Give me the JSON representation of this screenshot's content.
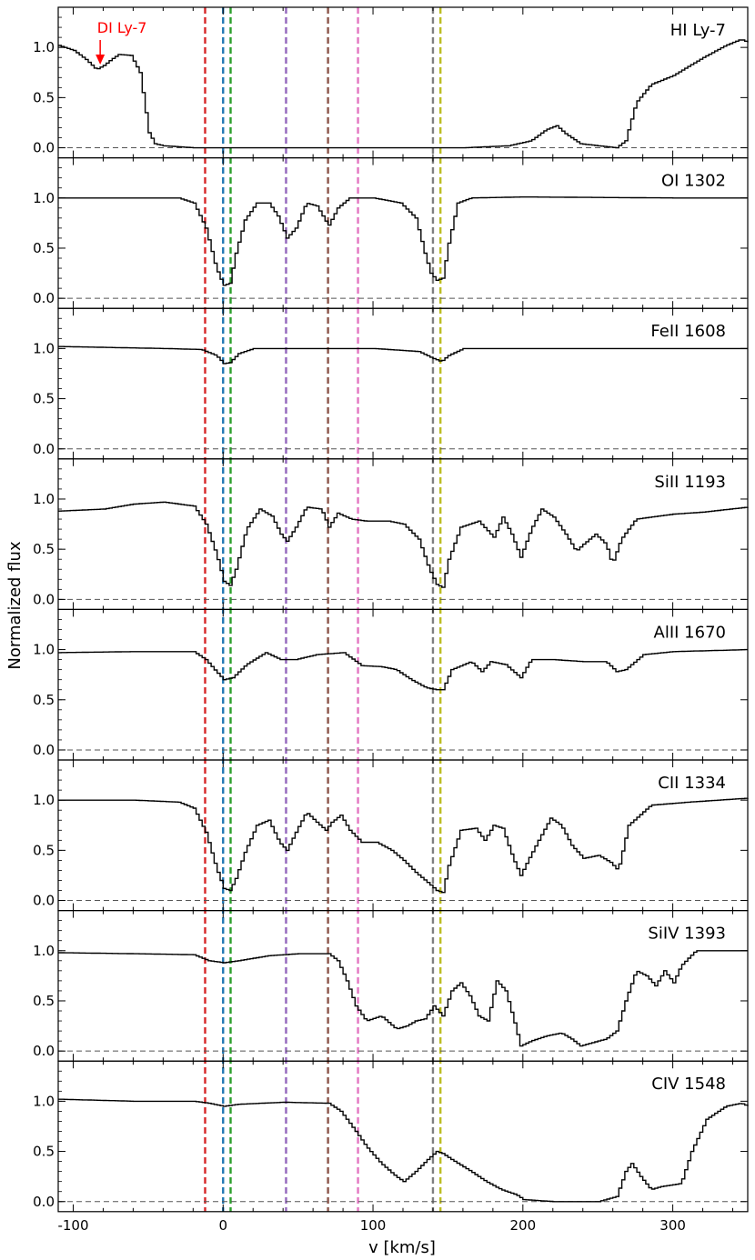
{
  "chart_data": {
    "type": "line",
    "xlabel": "v [km/s]",
    "ylabel": "Normalized flux",
    "xlim": [
      -110,
      350
    ],
    "ylim": [
      -0.1,
      1.4
    ],
    "x_ticks": [
      -100,
      0,
      100,
      200,
      300
    ],
    "y_ticks": [
      "0.0",
      "0.5",
      "1.0"
    ],
    "reference_lines": [
      {
        "v": -12,
        "color": "#d62728"
      },
      {
        "v": 0,
        "color": "#1f77b4"
      },
      {
        "v": 5,
        "color": "#2ca02c"
      },
      {
        "v": 42,
        "color": "#9467bd"
      },
      {
        "v": 70,
        "color": "#8c564b"
      },
      {
        "v": 90,
        "color": "#e377c2"
      },
      {
        "v": 140,
        "color": "#7f7f7f"
      },
      {
        "v": 145,
        "color": "#bcbd22"
      }
    ],
    "annotation": {
      "text": "DI Ly-7",
      "x": -82,
      "y": 0.82,
      "color": "#ff0000"
    },
    "panels": [
      {
        "name": "HI Ly-7",
        "points": [
          [
            -110,
            1.02
          ],
          [
            -100,
            0.97
          ],
          [
            -92,
            0.88
          ],
          [
            -85,
            0.78
          ],
          [
            -80,
            0.82
          ],
          [
            -75,
            0.88
          ],
          [
            -70,
            0.93
          ],
          [
            -62,
            0.92
          ],
          [
            -56,
            0.75
          ],
          [
            -53,
            0.45
          ],
          [
            -50,
            0.15
          ],
          [
            -46,
            0.04
          ],
          [
            -40,
            0.02
          ],
          [
            -20,
            0.0
          ],
          [
            0,
            0.0
          ],
          [
            40,
            0.0
          ],
          [
            80,
            0.0
          ],
          [
            120,
            0.0
          ],
          [
            160,
            0.0
          ],
          [
            190,
            0.02
          ],
          [
            205,
            0.07
          ],
          [
            215,
            0.18
          ],
          [
            222,
            0.22
          ],
          [
            228,
            0.14
          ],
          [
            238,
            0.04
          ],
          [
            250,
            0.02
          ],
          [
            262,
            0.0
          ],
          [
            268,
            0.07
          ],
          [
            275,
            0.45
          ],
          [
            285,
            0.63
          ],
          [
            300,
            0.72
          ],
          [
            320,
            0.9
          ],
          [
            335,
            1.02
          ],
          [
            345,
            1.08
          ],
          [
            350,
            1.05
          ]
        ]
      },
      {
        "name": "OI 1302",
        "points": [
          [
            -110,
            1.0
          ],
          [
            -50,
            1.0
          ],
          [
            -30,
            1.0
          ],
          [
            -20,
            0.95
          ],
          [
            -12,
            0.7
          ],
          [
            -6,
            0.35
          ],
          [
            -3,
            0.22
          ],
          [
            0,
            0.13
          ],
          [
            4,
            0.15
          ],
          [
            8,
            0.45
          ],
          [
            14,
            0.78
          ],
          [
            22,
            0.95
          ],
          [
            30,
            0.95
          ],
          [
            36,
            0.82
          ],
          [
            42,
            0.6
          ],
          [
            48,
            0.7
          ],
          [
            55,
            0.95
          ],
          [
            62,
            0.92
          ],
          [
            68,
            0.77
          ],
          [
            70,
            0.73
          ],
          [
            76,
            0.9
          ],
          [
            84,
            1.0
          ],
          [
            100,
            1.0
          ],
          [
            118,
            0.95
          ],
          [
            128,
            0.8
          ],
          [
            134,
            0.45
          ],
          [
            138,
            0.25
          ],
          [
            142,
            0.18
          ],
          [
            146,
            0.2
          ],
          [
            150,
            0.55
          ],
          [
            156,
            0.95
          ],
          [
            165,
            1.0
          ],
          [
            200,
            1.01
          ],
          [
            300,
            1.0
          ],
          [
            350,
            1.0
          ]
        ]
      },
      {
        "name": "FeII 1608",
        "points": [
          [
            -110,
            1.02
          ],
          [
            -40,
            1.0
          ],
          [
            -15,
            0.99
          ],
          [
            -5,
            0.93
          ],
          [
            0,
            0.85
          ],
          [
            4,
            0.86
          ],
          [
            10,
            0.95
          ],
          [
            20,
            1.0
          ],
          [
            60,
            1.0
          ],
          [
            100,
            1.0
          ],
          [
            130,
            0.97
          ],
          [
            140,
            0.9
          ],
          [
            145,
            0.87
          ],
          [
            150,
            0.93
          ],
          [
            160,
            1.0
          ],
          [
            200,
            1.0
          ],
          [
            350,
            1.0
          ]
        ]
      },
      {
        "name": "SiII 1193",
        "points": [
          [
            -110,
            0.88
          ],
          [
            -80,
            0.9
          ],
          [
            -60,
            0.95
          ],
          [
            -40,
            0.97
          ],
          [
            -20,
            0.93
          ],
          [
            -12,
            0.75
          ],
          [
            -5,
            0.45
          ],
          [
            0,
            0.18
          ],
          [
            4,
            0.14
          ],
          [
            8,
            0.3
          ],
          [
            15,
            0.7
          ],
          [
            24,
            0.9
          ],
          [
            32,
            0.83
          ],
          [
            38,
            0.65
          ],
          [
            42,
            0.58
          ],
          [
            48,
            0.72
          ],
          [
            55,
            0.92
          ],
          [
            65,
            0.9
          ],
          [
            70,
            0.72
          ],
          [
            76,
            0.86
          ],
          [
            85,
            0.8
          ],
          [
            95,
            0.78
          ],
          [
            110,
            0.78
          ],
          [
            120,
            0.75
          ],
          [
            130,
            0.6
          ],
          [
            137,
            0.3
          ],
          [
            142,
            0.15
          ],
          [
            146,
            0.12
          ],
          [
            150,
            0.4
          ],
          [
            158,
            0.72
          ],
          [
            170,
            0.78
          ],
          [
            180,
            0.62
          ],
          [
            186,
            0.82
          ],
          [
            192,
            0.65
          ],
          [
            198,
            0.42
          ],
          [
            205,
            0.7
          ],
          [
            212,
            0.9
          ],
          [
            220,
            0.82
          ],
          [
            228,
            0.65
          ],
          [
            235,
            0.48
          ],
          [
            240,
            0.55
          ],
          [
            248,
            0.65
          ],
          [
            255,
            0.55
          ],
          [
            259,
            0.35
          ],
          [
            265,
            0.6
          ],
          [
            275,
            0.8
          ],
          [
            300,
            0.85
          ],
          [
            320,
            0.87
          ],
          [
            350,
            0.92
          ]
        ]
      },
      {
        "name": "AlII 1670",
        "points": [
          [
            -110,
            0.97
          ],
          [
            -60,
            0.98
          ],
          [
            -20,
            0.98
          ],
          [
            -12,
            0.9
          ],
          [
            -5,
            0.78
          ],
          [
            0,
            0.7
          ],
          [
            6,
            0.72
          ],
          [
            15,
            0.85
          ],
          [
            28,
            0.97
          ],
          [
            38,
            0.9
          ],
          [
            48,
            0.9
          ],
          [
            62,
            0.95
          ],
          [
            80,
            0.97
          ],
          [
            92,
            0.84
          ],
          [
            105,
            0.83
          ],
          [
            115,
            0.8
          ],
          [
            125,
            0.7
          ],
          [
            135,
            0.62
          ],
          [
            142,
            0.6
          ],
          [
            146,
            0.6
          ],
          [
            152,
            0.8
          ],
          [
            165,
            0.88
          ],
          [
            172,
            0.78
          ],
          [
            178,
            0.88
          ],
          [
            188,
            0.85
          ],
          [
            198,
            0.72
          ],
          [
            205,
            0.9
          ],
          [
            220,
            0.9
          ],
          [
            240,
            0.88
          ],
          [
            255,
            0.88
          ],
          [
            262,
            0.78
          ],
          [
            268,
            0.8
          ],
          [
            280,
            0.95
          ],
          [
            300,
            0.98
          ],
          [
            350,
            1.0
          ]
        ]
      },
      {
        "name": "CII 1334",
        "points": [
          [
            -110,
            1.0
          ],
          [
            -60,
            1.0
          ],
          [
            -30,
            0.98
          ],
          [
            -20,
            0.92
          ],
          [
            -12,
            0.68
          ],
          [
            -5,
            0.32
          ],
          [
            0,
            0.12
          ],
          [
            4,
            0.1
          ],
          [
            8,
            0.22
          ],
          [
            14,
            0.48
          ],
          [
            22,
            0.75
          ],
          [
            30,
            0.8
          ],
          [
            37,
            0.58
          ],
          [
            42,
            0.5
          ],
          [
            48,
            0.68
          ],
          [
            55,
            0.88
          ],
          [
            62,
            0.78
          ],
          [
            68,
            0.7
          ],
          [
            72,
            0.78
          ],
          [
            78,
            0.85
          ],
          [
            84,
            0.7
          ],
          [
            92,
            0.58
          ],
          [
            102,
            0.58
          ],
          [
            112,
            0.5
          ],
          [
            120,
            0.4
          ],
          [
            128,
            0.28
          ],
          [
            136,
            0.18
          ],
          [
            142,
            0.1
          ],
          [
            146,
            0.08
          ],
          [
            150,
            0.35
          ],
          [
            158,
            0.7
          ],
          [
            168,
            0.72
          ],
          [
            174,
            0.6
          ],
          [
            180,
            0.75
          ],
          [
            186,
            0.72
          ],
          [
            193,
            0.42
          ],
          [
            198,
            0.25
          ],
          [
            203,
            0.4
          ],
          [
            210,
            0.6
          ],
          [
            218,
            0.82
          ],
          [
            225,
            0.75
          ],
          [
            232,
            0.55
          ],
          [
            240,
            0.42
          ],
          [
            250,
            0.45
          ],
          [
            258,
            0.38
          ],
          [
            263,
            0.3
          ],
          [
            270,
            0.75
          ],
          [
            285,
            0.95
          ],
          [
            310,
            0.98
          ],
          [
            350,
            1.02
          ]
        ]
      },
      {
        "name": "SiIV 1393",
        "points": [
          [
            -110,
            0.98
          ],
          [
            -60,
            0.97
          ],
          [
            -20,
            0.96
          ],
          [
            -10,
            0.9
          ],
          [
            0,
            0.88
          ],
          [
            10,
            0.9
          ],
          [
            30,
            0.95
          ],
          [
            50,
            0.97
          ],
          [
            70,
            0.97
          ],
          [
            76,
            0.9
          ],
          [
            82,
            0.7
          ],
          [
            88,
            0.45
          ],
          [
            95,
            0.3
          ],
          [
            105,
            0.35
          ],
          [
            115,
            0.22
          ],
          [
            122,
            0.25
          ],
          [
            128,
            0.3
          ],
          [
            134,
            0.32
          ],
          [
            140,
            0.45
          ],
          [
            146,
            0.35
          ],
          [
            152,
            0.6
          ],
          [
            158,
            0.68
          ],
          [
            164,
            0.55
          ],
          [
            170,
            0.35
          ],
          [
            176,
            0.3
          ],
          [
            182,
            0.7
          ],
          [
            188,
            0.6
          ],
          [
            194,
            0.28
          ],
          [
            198,
            0.05
          ],
          [
            205,
            0.1
          ],
          [
            215,
            0.15
          ],
          [
            225,
            0.18
          ],
          [
            232,
            0.12
          ],
          [
            238,
            0.05
          ],
          [
            245,
            0.08
          ],
          [
            255,
            0.12
          ],
          [
            262,
            0.2
          ],
          [
            268,
            0.5
          ],
          [
            275,
            0.8
          ],
          [
            282,
            0.75
          ],
          [
            288,
            0.65
          ],
          [
            294,
            0.8
          ],
          [
            300,
            0.68
          ],
          [
            305,
            0.85
          ],
          [
            315,
            1.0
          ],
          [
            350,
            1.0
          ]
        ]
      },
      {
        "name": "CIV 1548",
        "points": [
          [
            -110,
            1.02
          ],
          [
            -60,
            1.0
          ],
          [
            -20,
            1.0
          ],
          [
            -10,
            0.98
          ],
          [
            0,
            0.95
          ],
          [
            10,
            0.97
          ],
          [
            40,
            0.99
          ],
          [
            70,
            0.98
          ],
          [
            78,
            0.9
          ],
          [
            88,
            0.7
          ],
          [
            95,
            0.55
          ],
          [
            105,
            0.38
          ],
          [
            115,
            0.25
          ],
          [
            120,
            0.2
          ],
          [
            128,
            0.3
          ],
          [
            136,
            0.42
          ],
          [
            142,
            0.5
          ],
          [
            146,
            0.48
          ],
          [
            152,
            0.42
          ],
          [
            165,
            0.3
          ],
          [
            175,
            0.2
          ],
          [
            185,
            0.12
          ],
          [
            195,
            0.07
          ],
          [
            200,
            0.02
          ],
          [
            220,
            0.0
          ],
          [
            250,
            0.0
          ],
          [
            262,
            0.05
          ],
          [
            268,
            0.3
          ],
          [
            272,
            0.38
          ],
          [
            278,
            0.25
          ],
          [
            285,
            0.12
          ],
          [
            292,
            0.15
          ],
          [
            305,
            0.18
          ],
          [
            312,
            0.5
          ],
          [
            322,
            0.82
          ],
          [
            335,
            0.95
          ],
          [
            345,
            0.98
          ],
          [
            350,
            0.95
          ]
        ]
      }
    ]
  }
}
